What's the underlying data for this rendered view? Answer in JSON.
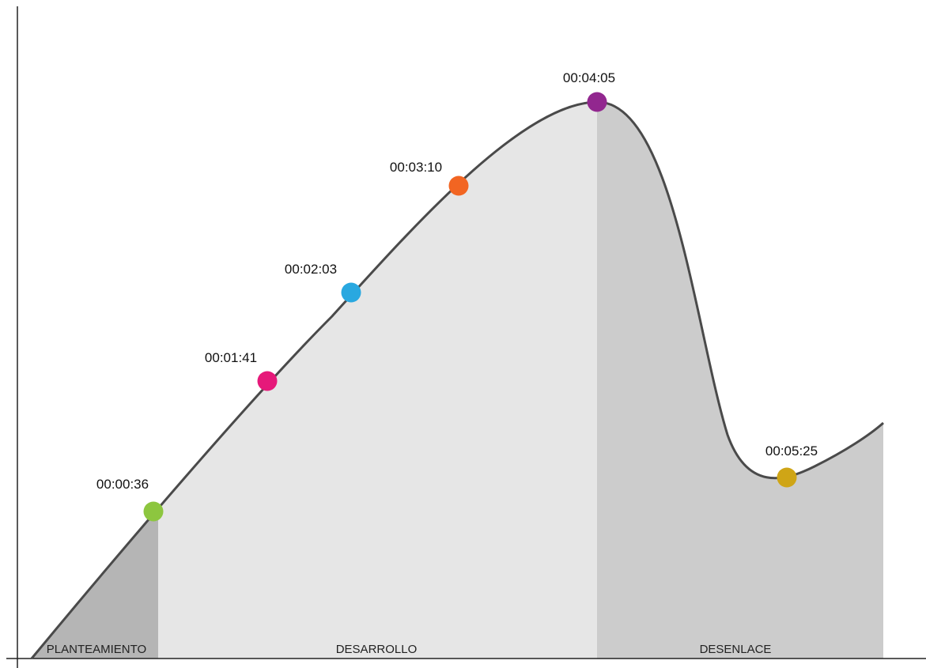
{
  "chart_data": {
    "type": "area",
    "title": "",
    "xlabel": "",
    "ylabel": "",
    "sections": [
      {
        "label": "PLANTEAMIENTO",
        "color": "#b5b5b5"
      },
      {
        "label": "DESARROLLO",
        "color": "#e6e6e6"
      },
      {
        "label": "DESENLACE",
        "color": "#cccccc"
      }
    ],
    "points": [
      {
        "label": "00:00:36",
        "color": "#8dc63f"
      },
      {
        "label": "00:01:41",
        "color": "#e6197a"
      },
      {
        "label": "00:02:03",
        "color": "#29a8e0"
      },
      {
        "label": "00:03:10",
        "color": "#f26522"
      },
      {
        "label": "00:04:05",
        "color": "#92278f"
      },
      {
        "label": "00:05:25",
        "color": "#cfa516"
      }
    ],
    "curve_color": "#4a4a4a",
    "grid": false,
    "legend": false
  }
}
